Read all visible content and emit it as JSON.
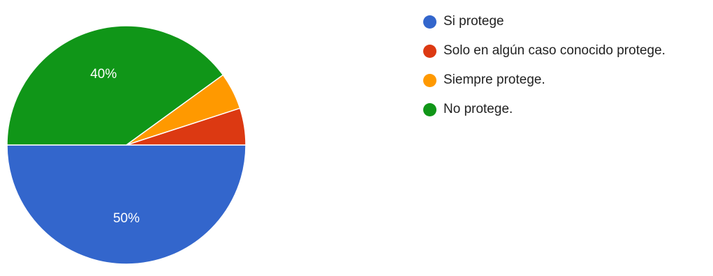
{
  "chart_data": {
    "type": "pie",
    "title": "",
    "start_angle_deg": 180,
    "direction": "clockwise",
    "series": [
      {
        "name": "Si protege",
        "value": 50,
        "color": "#3366cc",
        "label": "50%"
      },
      {
        "name": "Solo en algún caso conocido protege.",
        "value": 5,
        "color": "#dc3912",
        "label": ""
      },
      {
        "name": "Siempre protege.",
        "value": 5,
        "color": "#ff9900",
        "label": ""
      },
      {
        "name": "No protege.",
        "value": 40,
        "color": "#109618",
        "label": "40%"
      }
    ],
    "legend": {
      "position": "right",
      "items": [
        "Si protege",
        "Solo en algún caso conocido protege.",
        "Siempre protege.",
        "No protege."
      ]
    }
  }
}
